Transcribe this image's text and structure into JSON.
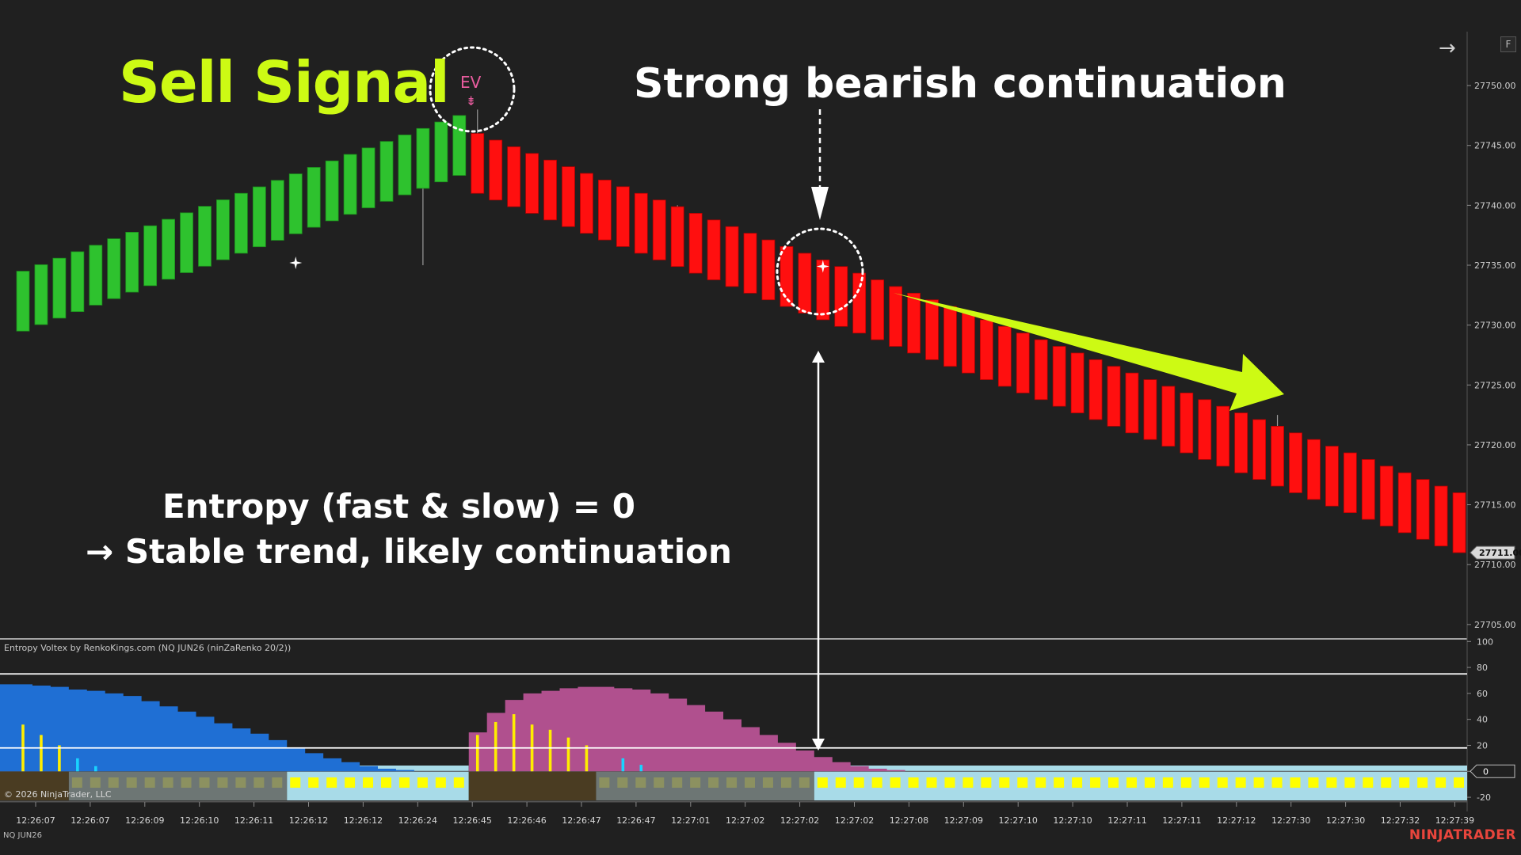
{
  "annotations": {
    "sell_signal": "Sell Signal",
    "strong_bearish": "Strong bearish continuation",
    "entropy_line1": "Entropy (fast & slow) = 0",
    "entropy_line2": "→ Stable trend, likely continuation",
    "ev_label": "EV",
    "ev_arrow": "⇟"
  },
  "colors": {
    "background": "#202020",
    "bull_bar": "#2ec22e",
    "bear_bar": "#ff0f0f",
    "annotation_accent": "#cdfa14",
    "annotation_text": "#ffffff",
    "entropy_fast_blue": "#1f6fd4",
    "entropy_fast_magenta": "#b0508e",
    "spike_yellow": "#ffee00",
    "spike_cyan": "#19d3ff",
    "band_brown": "#4a3c22",
    "band_gray": "#6d7674",
    "band_lightblue": "#a8dbe8",
    "band_yellow_square": "#ffff00",
    "band_olive_square": "#8c9160",
    "ev_pink": "#e85c9e",
    "brand_red": "#e8453c"
  },
  "panel": {
    "title": "Entropy Voltex by RenkoKings.com (NQ JUN26 (ninZaRenko 20/2))",
    "copyright": "© 2026 NinjaTrader, LLC"
  },
  "footer": {
    "instrument": "NQ JUN26",
    "brand": "NINJATRADER"
  },
  "controls": {
    "f_button": "F",
    "nav_arrow": "→"
  },
  "chart_data": [
    {
      "type": "renko",
      "price_axis": {
        "ticks": [
          "27750.00",
          "27745.00",
          "27740.00",
          "27735.00",
          "27730.00",
          "27725.00",
          "27720.00",
          "27715.00",
          "27710.00",
          "27705.00"
        ],
        "tick_values": [
          27750,
          27745,
          27740,
          27735,
          27730,
          27725,
          27720,
          27715,
          27710,
          27705
        ],
        "ylim": [
          27703.8,
          27754.5
        ],
        "last_price": "27711.00"
      },
      "time_axis": {
        "ticks": [
          "12:26:07",
          "12:26:07",
          "12:26:09",
          "12:26:10",
          "12:26:11",
          "12:26:12",
          "12:26:12",
          "12:26:24",
          "12:26:45",
          "12:26:46",
          "12:26:47",
          "12:26:47",
          "12:27:01",
          "12:27:02",
          "12:27:02",
          "12:27:02",
          "12:27:08",
          "12:27:09",
          "12:27:10",
          "12:27:10",
          "12:27:11",
          "12:27:11",
          "12:27:12",
          "12:27:30",
          "12:27:30",
          "12:27:32",
          "12:27:39"
        ]
      },
      "renko_bricks": {
        "up_count": 25,
        "up_first_open": 27729.5,
        "up_last_close": 27747.5,
        "down_count": 55,
        "down_first_open": 27746.0,
        "down_last_close": 27711.0,
        "brick_size": 5.0,
        "wicks": [
          {
            "brick": 22,
            "low": 27735.0
          },
          {
            "brick": 25,
            "high": 27748.0
          },
          {
            "brick": 36,
            "high": 27740.0
          },
          {
            "brick": 68,
            "high": 27722.0
          },
          {
            "brick": 69,
            "high": 27722.5
          }
        ]
      },
      "markers": [
        {
          "type": "star",
          "brick": 15,
          "price": 27735.2
        },
        {
          "type": "star",
          "brick": 44,
          "price": 27734.9
        }
      ]
    },
    {
      "type": "area",
      "title": "Entropy Voltex by RenkoKings.com (NQ JUN26 (ninZaRenko 20/2))",
      "y_axis": {
        "ticks": [
          "100",
          "80",
          "60",
          "40",
          "20",
          "0",
          "-20"
        ],
        "tick_values": [
          100,
          80,
          60,
          40,
          20,
          0,
          -20
        ],
        "ylim": [
          -23,
          102
        ],
        "current": "0"
      },
      "reference_lines": [
        75,
        18
      ],
      "series": [
        {
          "color_key": "entropy_fast_blue",
          "bars": [
            67,
            66,
            65,
            63,
            62,
            60,
            58,
            54,
            50,
            46,
            42,
            37,
            33,
            29,
            24,
            18,
            14,
            10,
            7,
            4,
            2,
            1,
            0,
            0,
            0
          ]
        },
        {
          "color_key": "entropy_fast_magenta",
          "bars": [
            30,
            45,
            55,
            60,
            62,
            64,
            65,
            65,
            64,
            63,
            60,
            56,
            51,
            46,
            40,
            34,
            28,
            22,
            16,
            11,
            7,
            4,
            2,
            1,
            0
          ]
        }
      ],
      "spikes": [
        {
          "color_key": "spike_yellow",
          "bar": 0,
          "value": 36
        },
        {
          "color_key": "spike_yellow",
          "bar": 1,
          "value": 28
        },
        {
          "color_key": "spike_yellow",
          "bar": 2,
          "value": 20
        },
        {
          "color_key": "spike_cyan",
          "bar": 3,
          "value": 10
        },
        {
          "color_key": "spike_cyan",
          "bar": 4,
          "value": 4
        },
        {
          "color_key": "spike_yellow",
          "bar": 25,
          "value": 28
        },
        {
          "color_key": "spike_yellow",
          "bar": 26,
          "value": 38
        },
        {
          "color_key": "spike_yellow",
          "bar": 27,
          "value": 44
        },
        {
          "color_key": "spike_yellow",
          "bar": 28,
          "value": 36
        },
        {
          "color_key": "spike_yellow",
          "bar": 29,
          "value": 32
        },
        {
          "color_key": "spike_yellow",
          "bar": 30,
          "value": 26
        },
        {
          "color_key": "spike_yellow",
          "bar": 31,
          "value": 20
        },
        {
          "color_key": "spike_cyan",
          "bar": 33,
          "value": 10
        },
        {
          "color_key": "spike_cyan",
          "bar": 34,
          "value": 5
        }
      ],
      "regime_band": [
        {
          "color_key": "band_brown",
          "from": 0,
          "to": 3,
          "squares": "none"
        },
        {
          "color_key": "band_gray",
          "from": 3,
          "to": 15,
          "squares": "band_olive_square"
        },
        {
          "color_key": "band_lightblue",
          "from": 15,
          "to": 25,
          "squares": "band_yellow_square"
        },
        {
          "color_key": "band_brown",
          "from": 25,
          "to": 32,
          "squares": "none"
        },
        {
          "color_key": "band_gray",
          "from": 32,
          "to": 44,
          "squares": "band_olive_square"
        },
        {
          "color_key": "band_lightblue",
          "from": 44,
          "to": 80,
          "squares": "band_yellow_square"
        }
      ]
    }
  ]
}
